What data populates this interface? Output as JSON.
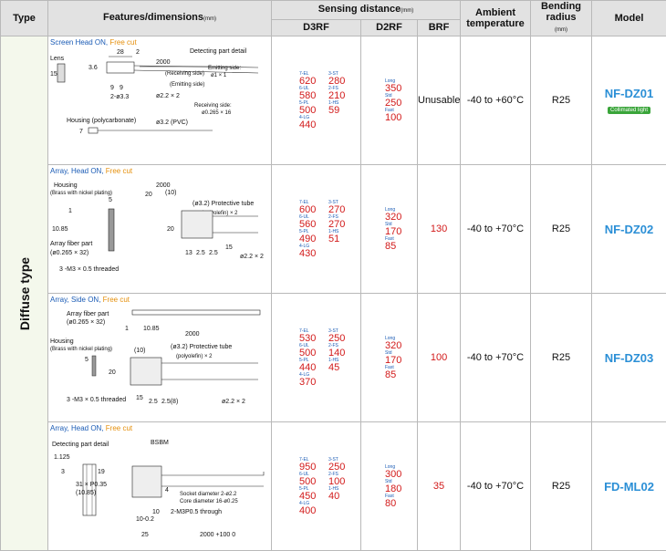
{
  "header": {
    "type": "Type",
    "features": "Features/dimensions",
    "features_unit": "(mm)",
    "sensing": "Sensing distance",
    "sensing_unit": "(mm)",
    "d3rf": "D3RF",
    "d2rf": "D2RF",
    "brf": "BRF",
    "ambient": "Ambient temperature",
    "bending": "Bending radius",
    "bending_unit": "(mm)",
    "model": "Model"
  },
  "type_label": "Diffuse type",
  "rows": [
    {
      "title_blue": "Screen Head ON, ",
      "title_orange": "Free cut",
      "d3rf": [
        {
          "m": "7-EL",
          "v": "620",
          "m2": "3-ST",
          "v2": "280"
        },
        {
          "m": "6-UL",
          "v": "580",
          "m2": "2-FS",
          "v2": "210"
        },
        {
          "m": "5-PL",
          "v": "500",
          "m2": "1-HS",
          "v2": "59"
        },
        {
          "m": "4-LG",
          "v": "440",
          "m2": "",
          "v2": ""
        }
      ],
      "d2rf": [
        {
          "m": "Long",
          "v": "350"
        },
        {
          "m": "Std",
          "v": "250"
        },
        {
          "m": "Fast",
          "v": "100"
        }
      ],
      "brf": "Unusable",
      "ambient": "-40 to +60°C",
      "bending": "R25",
      "model": "NF-DZ01",
      "badge": "Collimated light"
    },
    {
      "title_blue": "Array, Head ON, ",
      "title_orange": "Free cut",
      "d3rf": [
        {
          "m": "7-EL",
          "v": "600",
          "m2": "3-ST",
          "v2": "270"
        },
        {
          "m": "6-UL",
          "v": "560",
          "m2": "2-FS",
          "v2": "270"
        },
        {
          "m": "5-PL",
          "v": "490",
          "m2": "1-HS",
          "v2": "51"
        },
        {
          "m": "4-LG",
          "v": "430",
          "m2": "",
          "v2": ""
        }
      ],
      "d2rf": [
        {
          "m": "Long",
          "v": "320"
        },
        {
          "m": "Std",
          "v": "170"
        },
        {
          "m": "Fast",
          "v": "85"
        }
      ],
      "brf": "130",
      "ambient": "-40 to +70°C",
      "bending": "R25",
      "model": "NF-DZ02"
    },
    {
      "title_blue": "Array, Side ON, ",
      "title_orange": "Free cut",
      "d3rf": [
        {
          "m": "7-EL",
          "v": "530",
          "m2": "3-ST",
          "v2": "250"
        },
        {
          "m": "6-UL",
          "v": "500",
          "m2": "2-FS",
          "v2": "140"
        },
        {
          "m": "5-PL",
          "v": "440",
          "m2": "1-HS",
          "v2": "45"
        },
        {
          "m": "4-LG",
          "v": "370",
          "m2": "",
          "v2": ""
        }
      ],
      "d2rf": [
        {
          "m": "Long",
          "v": "320"
        },
        {
          "m": "Std",
          "v": "170"
        },
        {
          "m": "Fast",
          "v": "85"
        }
      ],
      "brf": "100",
      "ambient": "-40 to +70°C",
      "bending": "R25",
      "model": "NF-DZ03"
    },
    {
      "title_blue": "Array, Head ON, ",
      "title_orange": "Free cut",
      "d3rf": [
        {
          "m": "7-EL",
          "v": "950",
          "m2": "3-ST",
          "v2": "250"
        },
        {
          "m": "6-UL",
          "v": "500",
          "m2": "2-FS",
          "v2": "100"
        },
        {
          "m": "5-PL",
          "v": "450",
          "m2": "1-HS",
          "v2": "40"
        },
        {
          "m": "4-LG",
          "v": "400",
          "m2": "",
          "v2": ""
        }
      ],
      "d2rf": [
        {
          "m": "Long",
          "v": "300"
        },
        {
          "m": "Std",
          "v": "180"
        },
        {
          "m": "Fast",
          "v": "80"
        }
      ],
      "brf": "35",
      "ambient": "-40 to +70°C",
      "bending": "R25",
      "model": "FD-ML02"
    }
  ],
  "diagrams": {
    "r1": {
      "detect": "Detecting part detail",
      "lens": "Lens",
      "d28": "28",
      "d2": "2",
      "d2000": "2000",
      "d36": "3.6",
      "d15": "15",
      "d9a": "9",
      "d9b": "9",
      "hole": "2-ø3.3",
      "recv": "(Receiving side)",
      "emit": "(Emitting side)",
      "emit_side": "Emitting side:",
      "emit_val": "ø1 × 1",
      "recv_side": "Receiving side:",
      "recv_val": "ø0.265 × 16",
      "cable": "ø2.2 × 2",
      "housing": "Housing (polycarbonate)",
      "d7": "7",
      "pvc": "ø3.2 (PVC)"
    },
    "r2": {
      "housing": "Housing",
      "brass": "(Brass with nickel plating)",
      "d5": "5",
      "d1": "1",
      "d1085": "10.85",
      "afp": "Array fiber part",
      "afp2": "(ø0.265 × 32)",
      "thread": "3 -M3 × 0.5 threaded",
      "d20a": "20",
      "d10": "(10)",
      "d2000": "2000",
      "tube": "(ø3.2) Protective tube",
      "tube2": "(polyolefin) × 2",
      "d20b": "20",
      "d13": "13",
      "d25a": "2.5",
      "d25b": "2.5",
      "d15": "15",
      "cable": "ø2.2 × 2"
    },
    "r3": {
      "afp": "Array fiber part",
      "afp2": "(ø0.265 × 32)",
      "d1": "1",
      "d1085": "10.85",
      "d2000": "2000",
      "housing": "Housing",
      "brass": "(Brass with nickel plating)",
      "d5": "5",
      "d10": "(10)",
      "tube": "(ø3.2) Protective tube",
      "tube2": "(polyolefin) × 2",
      "d20": "20",
      "thread": "3 -M3 × 0.5 threaded",
      "d15": "15",
      "d25": "2.5",
      "d258": "2.5(8)",
      "cable": "ø2.2 × 2"
    },
    "r4": {
      "detect": "Detecting part detail",
      "bsbm": "BSBM",
      "d1125": "1.125",
      "d3": "3",
      "d19": "19",
      "pitch": "31 × P0.35",
      "d1085": "(10.85)",
      "d4": "4",
      "socket": "Socket diameter 2-ø2.2",
      "core": "Core diameter 16-ø0.25",
      "m3": "2-M3P0.5 through",
      "d10": "10",
      "d105": "10-0.2",
      "d25": "25",
      "d2000": "2000 +100 0"
    }
  }
}
